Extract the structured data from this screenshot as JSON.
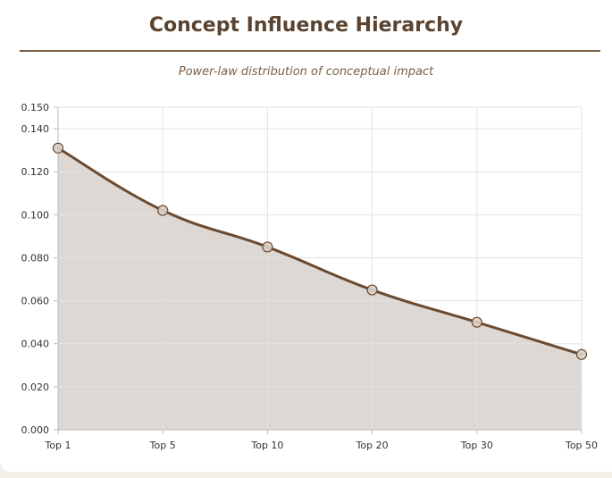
{
  "colors": {
    "line": "#6b4a30",
    "area": "#ddd8d3",
    "marker_fill": "#d8cfc8",
    "grid": "#e3e3e3",
    "axis": "#bbbbbb"
  },
  "chart_data": {
    "type": "area",
    "title": "Concept Influence Hierarchy",
    "subtitle": "Power-law distribution of conceptual impact",
    "xlabel": "",
    "ylabel": "",
    "categories": [
      "Top 1",
      "Top 5",
      "Top 10",
      "Top 20",
      "Top 30",
      "Top 50"
    ],
    "values": [
      0.131,
      0.102,
      0.085,
      0.065,
      0.05,
      0.035
    ],
    "ylim": [
      0,
      0.15
    ],
    "yticks": [
      "0.000",
      "0.020",
      "0.040",
      "0.060",
      "0.080",
      "0.100",
      "0.120",
      "0.140",
      "0.150"
    ],
    "grid": true,
    "legend": "none",
    "smooth": true
  }
}
